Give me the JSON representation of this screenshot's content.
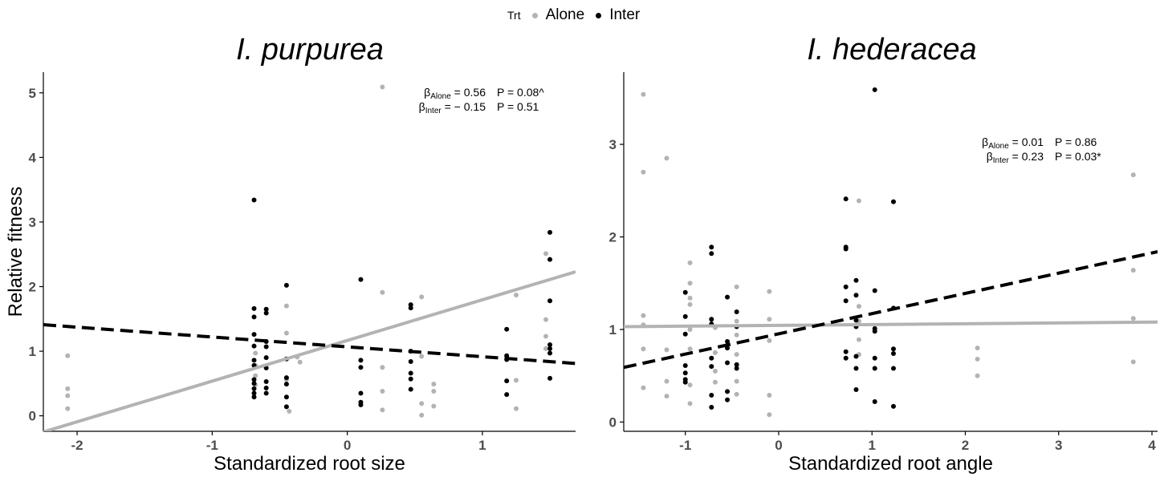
{
  "legend": {
    "title": "Trt",
    "items": [
      {
        "label": "Alone",
        "color": "#b3b3b3"
      },
      {
        "label": "Inter",
        "color": "#000000"
      }
    ]
  },
  "chart_data": [
    {
      "type": "scatter",
      "title": "I. purpurea",
      "xlabel": "Standardized root size",
      "ylabel": "Relative fitness",
      "xlim": [
        -2.25,
        1.69
      ],
      "ylim": [
        -0.24,
        5.32
      ],
      "x_ticks": [
        -2,
        -1,
        0,
        1
      ],
      "y_ticks": [
        0,
        1,
        2,
        3,
        4,
        5
      ],
      "grid": false,
      "series": [
        {
          "name": "Alone",
          "color": "#b3b3b3",
          "points": [
            [
              -2.07,
              0.93
            ],
            [
              -2.07,
              0.42
            ],
            [
              -2.07,
              0.31
            ],
            [
              -2.07,
              0.11
            ],
            [
              -0.68,
              0.97
            ],
            [
              -0.68,
              0.78
            ],
            [
              -0.68,
              0.62
            ],
            [
              -0.68,
              0.48
            ],
            [
              -0.45,
              1.7
            ],
            [
              -0.45,
              1.28
            ],
            [
              -0.45,
              0.56
            ],
            [
              -0.43,
              0.07
            ],
            [
              -0.37,
              0.91
            ],
            [
              -0.35,
              0.83
            ],
            [
              0.26,
              5.09
            ],
            [
              0.26,
              1.91
            ],
            [
              0.26,
              0.75
            ],
            [
              0.26,
              0.38
            ],
            [
              0.26,
              0.09
            ],
            [
              0.55,
              1.84
            ],
            [
              0.55,
              0.92
            ],
            [
              0.55,
              0.19
            ],
            [
              0.55,
              0.01
            ],
            [
              0.64,
              0.49
            ],
            [
              0.64,
              0.38
            ],
            [
              0.64,
              0.15
            ],
            [
              1.25,
              1.87
            ],
            [
              1.25,
              0.55
            ],
            [
              1.25,
              0.11
            ],
            [
              1.47,
              2.51
            ],
            [
              1.47,
              1.49
            ],
            [
              1.47,
              1.23
            ],
            [
              1.47,
              1.04
            ]
          ]
        },
        {
          "name": "Inter",
          "color": "#000000",
          "points": [
            [
              -0.69,
              3.34
            ],
            [
              -0.69,
              1.66
            ],
            [
              -0.69,
              1.53
            ],
            [
              -0.69,
              1.26
            ],
            [
              -0.69,
              1.08
            ],
            [
              -0.69,
              0.86
            ],
            [
              -0.69,
              0.78
            ],
            [
              -0.69,
              0.56
            ],
            [
              -0.69,
              0.5
            ],
            [
              -0.69,
              0.42
            ],
            [
              -0.69,
              0.35
            ],
            [
              -0.69,
              0.29
            ],
            [
              -0.6,
              1.65
            ],
            [
              -0.6,
              1.59
            ],
            [
              -0.6,
              1.15
            ],
            [
              -0.6,
              1.07
            ],
            [
              -0.6,
              0.9
            ],
            [
              -0.6,
              0.74
            ],
            [
              -0.6,
              0.53
            ],
            [
              -0.6,
              0.43
            ],
            [
              -0.6,
              0.35
            ],
            [
              -0.45,
              2.02
            ],
            [
              -0.45,
              0.88
            ],
            [
              -0.45,
              0.59
            ],
            [
              -0.45,
              0.49
            ],
            [
              -0.45,
              0.29
            ],
            [
              -0.45,
              0.14
            ],
            [
              0.1,
              2.11
            ],
            [
              0.1,
              0.86
            ],
            [
              0.1,
              0.75
            ],
            [
              0.1,
              0.35
            ],
            [
              0.1,
              0.21
            ],
            [
              0.1,
              0.17
            ],
            [
              0.47,
              1.72
            ],
            [
              0.47,
              1.67
            ],
            [
              0.47,
              1.0
            ],
            [
              0.47,
              0.84
            ],
            [
              0.47,
              0.66
            ],
            [
              0.47,
              0.57
            ],
            [
              0.47,
              0.41
            ],
            [
              1.18,
              1.34
            ],
            [
              1.18,
              0.93
            ],
            [
              1.18,
              0.87
            ],
            [
              1.18,
              0.54
            ],
            [
              1.18,
              0.33
            ],
            [
              1.5,
              2.84
            ],
            [
              1.5,
              2.42
            ],
            [
              1.5,
              1.78
            ],
            [
              1.5,
              1.1
            ],
            [
              1.5,
              1.04
            ],
            [
              1.5,
              0.97
            ],
            [
              1.5,
              0.58
            ]
          ]
        }
      ],
      "fits": [
        {
          "series": "Alone",
          "style": "solid",
          "x": [
            -2.25,
            1.69
          ],
          "y": [
            -0.25,
            2.23
          ]
        },
        {
          "series": "Inter",
          "style": "dashed",
          "x": [
            -2.25,
            1.69
          ],
          "y": [
            1.41,
            0.81
          ]
        }
      ],
      "annotations": [
        {
          "sub": "Alone",
          "beta": " = 0.56",
          "p": "P = 0.08^"
        },
        {
          "sub": "Inter",
          "beta": " = − 0.15",
          "p": "P = 0.51"
        }
      ]
    },
    {
      "type": "scatter",
      "title": "I. hederacea",
      "xlabel": "Standardized root angle",
      "ylabel": "",
      "xlim": [
        -1.66,
        4.06
      ],
      "ylim": [
        -0.1,
        3.78
      ],
      "x_ticks": [
        -1,
        0,
        1,
        2,
        3,
        4
      ],
      "y_ticks": [
        0,
        1,
        2,
        3
      ],
      "grid": false,
      "series": [
        {
          "name": "Alone",
          "color": "#b3b3b3",
          "points": [
            [
              -1.45,
              3.54
            ],
            [
              -1.45,
              2.7
            ],
            [
              -1.45,
              1.15
            ],
            [
              -1.45,
              1.05
            ],
            [
              -1.45,
              0.79
            ],
            [
              -1.45,
              0.37
            ],
            [
              -1.2,
              2.85
            ],
            [
              -1.2,
              0.78
            ],
            [
              -1.2,
              0.44
            ],
            [
              -1.2,
              0.28
            ],
            [
              -0.95,
              1.72
            ],
            [
              -0.95,
              1.5
            ],
            [
              -0.95,
              1.34
            ],
            [
              -0.95,
              1.27
            ],
            [
              -0.95,
              1.0
            ],
            [
              -0.95,
              0.79
            ],
            [
              -0.95,
              0.4
            ],
            [
              -0.95,
              0.2
            ],
            [
              -0.68,
              1.02
            ],
            [
              -0.68,
              0.75
            ],
            [
              -0.68,
              0.55
            ],
            [
              -0.68,
              0.43
            ],
            [
              -0.45,
              1.46
            ],
            [
              -0.45,
              1.09
            ],
            [
              -0.45,
              0.94
            ],
            [
              -0.45,
              0.73
            ],
            [
              -0.45,
              0.62
            ],
            [
              -0.45,
              0.44
            ],
            [
              -0.45,
              0.3
            ],
            [
              -0.1,
              1.41
            ],
            [
              -0.1,
              1.11
            ],
            [
              -0.1,
              0.88
            ],
            [
              -0.1,
              0.29
            ],
            [
              -0.1,
              0.08
            ],
            [
              0.86,
              2.39
            ],
            [
              0.86,
              1.25
            ],
            [
              0.86,
              1.09
            ],
            [
              0.86,
              0.89
            ],
            [
              0.86,
              0.73
            ],
            [
              2.13,
              0.8
            ],
            [
              2.13,
              0.68
            ],
            [
              2.13,
              0.5
            ],
            [
              3.8,
              2.67
            ],
            [
              3.8,
              1.64
            ],
            [
              3.8,
              1.12
            ],
            [
              3.8,
              0.65
            ]
          ]
        },
        {
          "name": "Inter",
          "color": "#000000",
          "points": [
            [
              -1.0,
              1.4
            ],
            [
              -1.0,
              1.14
            ],
            [
              -1.0,
              0.95
            ],
            [
              -1.0,
              0.61
            ],
            [
              -1.0,
              0.53
            ],
            [
              -1.0,
              0.46
            ],
            [
              -1.0,
              0.43
            ],
            [
              -0.72,
              1.89
            ],
            [
              -0.72,
              1.82
            ],
            [
              -0.72,
              1.11
            ],
            [
              -0.72,
              1.06
            ],
            [
              -0.72,
              0.69
            ],
            [
              -0.72,
              0.6
            ],
            [
              -0.72,
              0.29
            ],
            [
              -0.72,
              0.16
            ],
            [
              -0.55,
              1.35
            ],
            [
              -0.55,
              0.87
            ],
            [
              -0.55,
              0.8
            ],
            [
              -0.55,
              0.64
            ],
            [
              -0.55,
              0.33
            ],
            [
              -0.55,
              0.24
            ],
            [
              -0.45,
              1.19
            ],
            [
              -0.45,
              1.03
            ],
            [
              -0.45,
              0.62
            ],
            [
              -0.45,
              0.58
            ],
            [
              0.72,
              2.41
            ],
            [
              0.72,
              1.89
            ],
            [
              0.72,
              1.87
            ],
            [
              0.72,
              1.46
            ],
            [
              0.72,
              1.31
            ],
            [
              0.72,
              0.76
            ],
            [
              0.72,
              0.69
            ],
            [
              0.83,
              1.53
            ],
            [
              0.83,
              1.37
            ],
            [
              0.83,
              1.1
            ],
            [
              0.83,
              1.03
            ],
            [
              0.83,
              0.71
            ],
            [
              0.83,
              0.58
            ],
            [
              0.83,
              0.35
            ],
            [
              1.03,
              3.59
            ],
            [
              1.03,
              1.42
            ],
            [
              1.03,
              1.01
            ],
            [
              1.03,
              0.98
            ],
            [
              1.03,
              0.69
            ],
            [
              1.03,
              0.58
            ],
            [
              1.03,
              0.22
            ],
            [
              1.23,
              2.38
            ],
            [
              1.23,
              1.23
            ],
            [
              1.23,
              0.79
            ],
            [
              1.23,
              0.74
            ],
            [
              1.23,
              0.58
            ],
            [
              1.23,
              0.17
            ]
          ]
        }
      ],
      "fits": [
        {
          "series": "Alone",
          "style": "solid",
          "x": [
            -1.66,
            4.06
          ],
          "y": [
            1.03,
            1.08
          ]
        },
        {
          "series": "Inter",
          "style": "dashed",
          "x": [
            -1.66,
            4.06
          ],
          "y": [
            0.59,
            1.84
          ]
        }
      ],
      "annotations": [
        {
          "sub": "Alone",
          "beta": " = 0.01",
          "p": "P = 0.86"
        },
        {
          "sub": "Inter",
          "beta": " = 0.23",
          "p": "P = 0.03*"
        }
      ]
    }
  ]
}
